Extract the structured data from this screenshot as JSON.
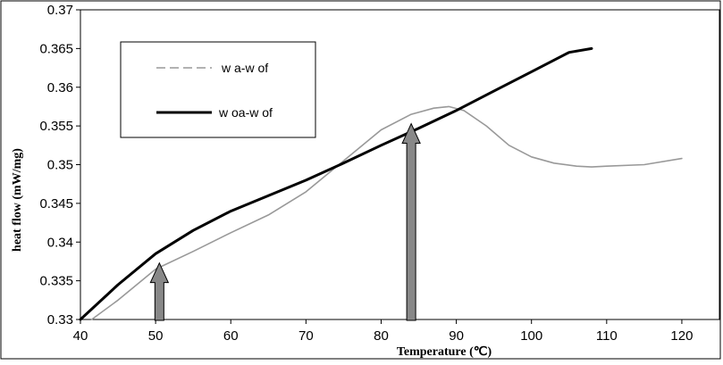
{
  "chart_data": {
    "type": "line",
    "xlabel": "Temperature (℃)",
    "ylabel": "heat flow (mW/mg)",
    "xlim": [
      40,
      125
    ],
    "ylim": [
      0.33,
      0.37
    ],
    "xticks": [
      40,
      50,
      60,
      70,
      80,
      90,
      100,
      110,
      120
    ],
    "yticks": [
      0.33,
      0.335,
      0.34,
      0.345,
      0.35,
      0.355,
      0.36,
      0.365,
      0.37
    ],
    "xtick_labels": [
      "40",
      "50",
      "60",
      "70",
      "80",
      "90",
      "100",
      "110",
      "120"
    ],
    "ytick_labels": [
      "0.33",
      "0.335",
      "0.34",
      "0.345",
      "0.35",
      "0.355",
      "0.36",
      "0.365",
      "0.37"
    ],
    "grid": false,
    "legend_position": "top-left",
    "series": [
      {
        "name": "w a-w of",
        "style": "dashed",
        "color": "#999999",
        "x": [
          41.5,
          45,
          50,
          55,
          60,
          65,
          70,
          75,
          80,
          84,
          87,
          89,
          91,
          94,
          97,
          100,
          103,
          106,
          108,
          110,
          115,
          120
        ],
        "y": [
          0.33,
          0.3325,
          0.3365,
          0.3388,
          0.3412,
          0.3435,
          0.3465,
          0.3505,
          0.3545,
          0.3565,
          0.3573,
          0.3575,
          0.357,
          0.355,
          0.3525,
          0.351,
          0.3502,
          0.3498,
          0.3497,
          0.3498,
          0.35,
          0.3508
        ]
      },
      {
        "name": "w oa-w of",
        "style": "solid",
        "color": "#000000",
        "x": [
          40,
          45,
          50,
          55,
          60,
          65,
          70,
          75,
          80,
          85,
          90,
          95,
          100,
          105,
          108
        ],
        "y": [
          0.33,
          0.3345,
          0.3385,
          0.3415,
          0.344,
          0.346,
          0.348,
          0.3502,
          0.3525,
          0.3547,
          0.357,
          0.3595,
          0.362,
          0.3645,
          0.365
        ]
      }
    ],
    "annotations": [
      {
        "type": "arrow",
        "x": 50.5,
        "y_tip": 0.3373,
        "direction": "up",
        "color": "#888888"
      },
      {
        "type": "arrow",
        "x": 84,
        "y_tip": 0.3553,
        "direction": "up",
        "color": "#888888"
      }
    ]
  }
}
